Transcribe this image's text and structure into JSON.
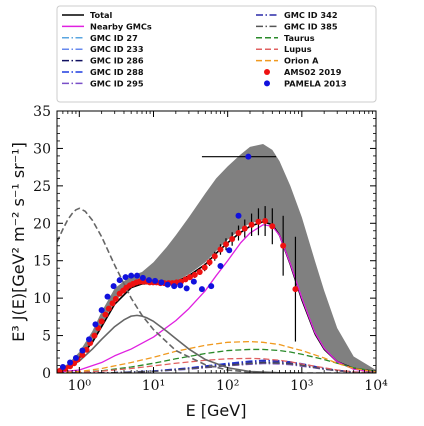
{
  "chart_data": {
    "type": "line",
    "xscale": "log",
    "xlim": [
      0.5,
      10000
    ],
    "ylim": [
      0,
      35
    ],
    "xlabel": "E [GeV]",
    "ylabel": "E³ J(E)[GeV² m⁻² s⁻¹ sr⁻¹]",
    "x_ticks": [
      {
        "v": 1,
        "label": "10⁰"
      },
      {
        "v": 10,
        "label": "10¹"
      },
      {
        "v": 100,
        "label": "10²"
      },
      {
        "v": 1000,
        "label": "10³"
      },
      {
        "v": 10000,
        "label": "10⁴"
      }
    ],
    "y_ticks": [
      0,
      5,
      10,
      15,
      20,
      25,
      30,
      35
    ],
    "grid": false,
    "legend_position": "top",
    "band": {
      "color": "#808080",
      "x": [
        0.5,
        0.7,
        1,
        1.5,
        2,
        3,
        5,
        7,
        10,
        15,
        20,
        30,
        50,
        70,
        100,
        150,
        200,
        300,
        400,
        500,
        700,
        1000,
        1500,
        2000,
        3000,
        5000,
        10000
      ],
      "lower": [
        0.3,
        0.9,
        2.0,
        4.2,
        6.4,
        9.6,
        11.7,
        12.0,
        12.0,
        12.0,
        12.3,
        13.2,
        14.8,
        16.3,
        17.8,
        19.2,
        20.0,
        20.4,
        19.8,
        18.3,
        14.2,
        9.5,
        5.0,
        3.0,
        1.4,
        0.6,
        0.2
      ],
      "upper": [
        0.4,
        1.2,
        2.8,
        5.6,
        8.2,
        11.3,
        13.0,
        13.5,
        14.8,
        16.8,
        18.4,
        20.8,
        24.0,
        26.0,
        27.6,
        29.2,
        30.2,
        30.6,
        29.8,
        28.3,
        25.0,
        20.8,
        15.0,
        11.0,
        6.0,
        2.2,
        0.4
      ]
    },
    "series": [
      {
        "name": "Total",
        "color": "#000000",
        "dash": "solid",
        "width": 1.6,
        "x": [
          0.5,
          0.7,
          1,
          1.5,
          2,
          3,
          5,
          7,
          10,
          15,
          20,
          30,
          50,
          70,
          100,
          150,
          200,
          300,
          400,
          500,
          700,
          1000,
          1500,
          2000,
          3000,
          5000,
          10000
        ],
        "y": [
          0.3,
          0.9,
          2.0,
          4.1,
          6.2,
          9.2,
          11.4,
          11.9,
          12.0,
          12.0,
          12.2,
          13.0,
          14.5,
          16.0,
          17.4,
          18.8,
          19.6,
          20.2,
          19.8,
          18.4,
          14.5,
          9.8,
          5.3,
          3.2,
          1.5,
          0.6,
          0.2
        ]
      },
      {
        "name": "Nearby GMCs",
        "color": "#e020e0",
        "dash": "solid",
        "width": 1.3,
        "x": [
          0.5,
          1,
          2,
          3,
          5,
          10,
          20,
          30,
          50,
          70,
          100,
          150,
          200,
          300,
          400,
          500,
          700,
          1000,
          1500,
          2000,
          3000,
          5000,
          10000
        ],
        "y": [
          0.1,
          0.4,
          1.4,
          2.3,
          3.2,
          4.8,
          7.0,
          8.6,
          11.0,
          13.0,
          15.0,
          17.4,
          18.7,
          19.8,
          19.6,
          18.4,
          14.6,
          10.0,
          5.4,
          3.3,
          1.5,
          0.5,
          0.1
        ]
      },
      {
        "name": "GMC ID 27",
        "color": "#5aa6e0",
        "dash": "dashdot",
        "width": 1.2,
        "x": [
          0.5,
          1,
          3,
          10,
          30,
          100,
          200,
          300,
          500,
          700,
          1000,
          2000,
          3000,
          5000,
          10000
        ],
        "y": [
          0.0,
          0.01,
          0.05,
          0.2,
          0.5,
          1.0,
          1.2,
          1.3,
          1.25,
          1.15,
          0.95,
          0.5,
          0.3,
          0.12,
          0.03
        ]
      },
      {
        "name": "GMC ID 233",
        "color": "#6688ee",
        "dash": "dashdot",
        "width": 1.2,
        "x": [
          0.5,
          1,
          3,
          10,
          30,
          100,
          200,
          300,
          500,
          700,
          1000,
          2000,
          3000,
          5000,
          10000
        ],
        "y": [
          0.0,
          0.01,
          0.06,
          0.25,
          0.6,
          1.1,
          1.35,
          1.45,
          1.4,
          1.3,
          1.1,
          0.6,
          0.35,
          0.14,
          0.03
        ]
      },
      {
        "name": "GMC ID 286",
        "color": "#101060",
        "dash": "dashdot",
        "width": 1.2,
        "x": [
          0.5,
          1,
          3,
          10,
          30,
          100,
          200,
          300,
          500,
          700,
          1000,
          2000,
          3000,
          5000,
          10000
        ],
        "y": [
          0.0,
          0.01,
          0.05,
          0.22,
          0.55,
          1.05,
          1.3,
          1.4,
          1.35,
          1.25,
          1.05,
          0.55,
          0.32,
          0.13,
          0.03
        ]
      },
      {
        "name": "GMC ID 288",
        "color": "#1f3de0",
        "dash": "dashdot",
        "width": 1.2,
        "x": [
          0.5,
          1,
          3,
          10,
          30,
          100,
          200,
          300,
          500,
          700,
          1000,
          2000,
          3000,
          5000,
          10000
        ],
        "y": [
          0.0,
          0.01,
          0.06,
          0.28,
          0.7,
          1.3,
          1.6,
          1.7,
          1.65,
          1.5,
          1.25,
          0.65,
          0.38,
          0.15,
          0.04
        ]
      },
      {
        "name": "GMC ID 295",
        "color": "#7a4fc8",
        "dash": "dashdot",
        "width": 1.2,
        "x": [
          0.5,
          1,
          3,
          10,
          30,
          100,
          200,
          300,
          500,
          700,
          1000,
          2000,
          3000,
          5000,
          10000
        ],
        "y": [
          0.0,
          0.01,
          0.05,
          0.2,
          0.5,
          0.95,
          1.15,
          1.25,
          1.2,
          1.1,
          0.9,
          0.48,
          0.28,
          0.11,
          0.03
        ]
      },
      {
        "name": "GMC ID 342",
        "color": "#2a2aa8",
        "dash": "dashdot",
        "width": 1.2,
        "x": [
          0.5,
          1,
          3,
          10,
          30,
          100,
          200,
          300,
          500,
          700,
          1000,
          2000,
          3000,
          5000,
          10000
        ],
        "y": [
          0.0,
          0.01,
          0.06,
          0.25,
          0.65,
          1.2,
          1.5,
          1.6,
          1.55,
          1.4,
          1.2,
          0.62,
          0.36,
          0.14,
          0.03
        ]
      },
      {
        "name": "GMC ID 385",
        "color": "#555555",
        "dash": "dashdot",
        "width": 1.2,
        "x": [
          0.5,
          1,
          3,
          10,
          30,
          100,
          200,
          300,
          500,
          700,
          1000,
          2000,
          3000,
          5000,
          10000
        ],
        "y": [
          0.0,
          0.01,
          0.05,
          0.22,
          0.55,
          1.0,
          1.25,
          1.35,
          1.3,
          1.2,
          1.0,
          0.52,
          0.3,
          0.12,
          0.03
        ]
      },
      {
        "name": "Taurus",
        "color": "#2a8a2a",
        "dash": "dashed",
        "width": 1.3,
        "x": [
          0.5,
          1,
          2,
          5,
          10,
          20,
          50,
          100,
          200,
          300,
          500,
          700,
          1000,
          2000,
          3000,
          5000,
          10000
        ],
        "y": [
          0.02,
          0.1,
          0.3,
          0.8,
          1.3,
          1.9,
          2.6,
          3.0,
          3.15,
          3.15,
          3.0,
          2.8,
          2.5,
          1.8,
          1.3,
          0.7,
          0.2
        ]
      },
      {
        "name": "Lupus",
        "color": "#e06060",
        "dash": "dashed",
        "width": 1.3,
        "x": [
          0.5,
          1,
          2,
          5,
          10,
          20,
          50,
          100,
          200,
          300,
          500,
          700,
          1000,
          2000,
          3000,
          5000,
          10000
        ],
        "y": [
          0.02,
          0.08,
          0.25,
          0.6,
          0.95,
          1.3,
          1.7,
          1.9,
          1.95,
          1.9,
          1.7,
          1.5,
          1.2,
          0.7,
          0.4,
          0.15,
          0.03
        ]
      },
      {
        "name": "Orion A",
        "color": "#f09a20",
        "dash": "dashed",
        "width": 1.3,
        "x": [
          0.5,
          1,
          2,
          5,
          10,
          20,
          50,
          100,
          200,
          300,
          500,
          700,
          1000,
          2000,
          3000,
          5000,
          10000
        ],
        "y": [
          0.05,
          0.2,
          0.6,
          1.4,
          2.1,
          2.9,
          3.7,
          4.1,
          4.2,
          4.1,
          3.8,
          3.4,
          3.0,
          2.0,
          1.3,
          0.6,
          0.15
        ]
      },
      {
        "name": "",
        "color": "#666666",
        "dash": "dashed",
        "width": 1.6,
        "x": [
          0.5,
          0.6,
          0.7,
          0.8,
          0.9,
          1,
          1.2,
          1.5,
          2,
          3,
          5,
          7,
          10,
          20,
          50,
          100,
          200,
          500,
          1000,
          10000
        ],
        "y": [
          17.5,
          19.2,
          20.5,
          21.3,
          21.8,
          22.0,
          21.6,
          20.4,
          18.2,
          14.4,
          10.0,
          7.7,
          5.8,
          3.0,
          1.1,
          0.4,
          0.12,
          0.02,
          0.0,
          0.0
        ]
      },
      {
        "name": "",
        "color": "#666666",
        "dash": "solid",
        "width": 1.6,
        "x": [
          0.5,
          0.7,
          1,
          1.5,
          2,
          3,
          4,
          5,
          6,
          7,
          8,
          10,
          15,
          20,
          30,
          50,
          100,
          200,
          500,
          1000
        ],
        "y": [
          0.2,
          0.7,
          1.6,
          3.2,
          4.5,
          6.2,
          7.1,
          7.6,
          7.7,
          7.6,
          7.4,
          6.9,
          5.6,
          4.6,
          3.2,
          1.8,
          0.7,
          0.2,
          0.03,
          0.0
        ]
      }
    ],
    "scatter": [
      {
        "name": "AMS02 2019",
        "color": "#ee1111",
        "x": [
          0.55,
          0.65,
          0.75,
          0.85,
          0.95,
          1.1,
          1.25,
          1.4,
          1.6,
          1.8,
          2.0,
          2.25,
          2.5,
          2.8,
          3.1,
          3.5,
          3.9,
          4.3,
          4.8,
          5.3,
          5.9,
          6.5,
          7.2,
          8.0,
          8.9,
          9.9,
          11,
          12.4,
          14,
          16,
          18,
          20.5,
          23.5,
          27,
          31,
          36,
          42,
          49,
          57,
          67,
          80,
          95,
          115,
          140,
          170,
          210,
          260,
          320,
          400,
          560,
          820
        ],
        "y": [
          0.3,
          0.6,
          0.9,
          1.3,
          1.8,
          2.4,
          3.1,
          4.0,
          5.0,
          6.0,
          6.9,
          7.8,
          8.6,
          9.3,
          9.9,
          10.6,
          11.0,
          11.4,
          11.7,
          11.9,
          12.1,
          12.2,
          12.2,
          12.2,
          12.1,
          12.1,
          12.1,
          12.0,
          12.0,
          12.0,
          12.0,
          12.1,
          12.2,
          12.5,
          12.8,
          13.1,
          13.5,
          14.1,
          14.8,
          15.6,
          16.5,
          17.2,
          17.9,
          18.7,
          19.3,
          19.8,
          20.2,
          20.3,
          19.6,
          17.0,
          11.2
        ],
        "err": [
          0.1,
          0.1,
          0.1,
          0.1,
          0.1,
          0.2,
          0.2,
          0.2,
          0.2,
          0.2,
          0.2,
          0.2,
          0.2,
          0.2,
          0.2,
          0.2,
          0.2,
          0.2,
          0.2,
          0.2,
          0.2,
          0.2,
          0.2,
          0.2,
          0.2,
          0.2,
          0.2,
          0.2,
          0.2,
          0.3,
          0.3,
          0.3,
          0.3,
          0.3,
          0.4,
          0.4,
          0.4,
          0.5,
          0.5,
          0.6,
          0.7,
          0.8,
          0.9,
          1.0,
          1.2,
          1.5,
          1.8,
          2.0,
          2.4,
          4.0,
          7.0
        ]
      },
      {
        "name": "PAMELA 2013",
        "color": "#1111dd",
        "x": [
          0.6,
          0.75,
          0.9,
          1.1,
          1.35,
          1.65,
          2.0,
          2.4,
          2.9,
          3.5,
          4.2,
          5.0,
          6.0,
          7.2,
          8.7,
          10.5,
          12.8,
          15.5,
          19,
          23,
          28,
          35,
          45,
          60,
          80,
          105,
          140,
          190
        ],
        "y": [
          0.8,
          1.4,
          2.0,
          3.0,
          4.5,
          6.5,
          8.4,
          10.2,
          11.6,
          12.4,
          12.8,
          13.0,
          13.0,
          12.7,
          12.4,
          12.3,
          12.1,
          11.8,
          11.6,
          11.7,
          11.3,
          12.2,
          11.2,
          11.6,
          14.3,
          16.4,
          21.0,
          28.9
        ],
        "xerr_lo": [
          0,
          0,
          0,
          0,
          0,
          0,
          0,
          0,
          0,
          0,
          0,
          0,
          0,
          0,
          0,
          0,
          0,
          0,
          0,
          0,
          0,
          0,
          0,
          0,
          0,
          0,
          0,
          145
        ],
        "xerr_hi": [
          0,
          0,
          0,
          0,
          0,
          0,
          0,
          0,
          0,
          0,
          0,
          0,
          0,
          0,
          0,
          0,
          0,
          0,
          0,
          0,
          0,
          0,
          0,
          0,
          0,
          0,
          0,
          260
        ]
      }
    ],
    "legend": [
      {
        "label": "Total",
        "kind": "line",
        "color": "#000000",
        "dash": "solid"
      },
      {
        "label": "Nearby GMCs",
        "kind": "line",
        "color": "#e020e0",
        "dash": "solid"
      },
      {
        "label": "GMC ID 27",
        "kind": "line",
        "color": "#5aa6e0",
        "dash": "dashdot"
      },
      {
        "label": "GMC ID 233",
        "kind": "line",
        "color": "#6688ee",
        "dash": "dashdot"
      },
      {
        "label": "GMC ID 286",
        "kind": "line",
        "color": "#101060",
        "dash": "dashdot"
      },
      {
        "label": "GMC ID 288",
        "kind": "line",
        "color": "#1f3de0",
        "dash": "dashdot"
      },
      {
        "label": "GMC ID 295",
        "kind": "line",
        "color": "#7a4fc8",
        "dash": "dashdot"
      },
      {
        "label": "GMC ID 342",
        "kind": "line",
        "color": "#2a2aa8",
        "dash": "dashdot"
      },
      {
        "label": "GMC ID 385",
        "kind": "line",
        "color": "#555555",
        "dash": "dashdot"
      },
      {
        "label": "Taurus",
        "kind": "line",
        "color": "#2a8a2a",
        "dash": "dashed"
      },
      {
        "label": "Lupus",
        "kind": "line",
        "color": "#e06060",
        "dash": "dashed"
      },
      {
        "label": "Orion A",
        "kind": "line",
        "color": "#f09a20",
        "dash": "dashed"
      },
      {
        "label": "AMS02 2019",
        "kind": "marker",
        "color": "#ee1111"
      },
      {
        "label": "PAMELA 2013",
        "kind": "marker",
        "color": "#1111dd"
      }
    ]
  }
}
